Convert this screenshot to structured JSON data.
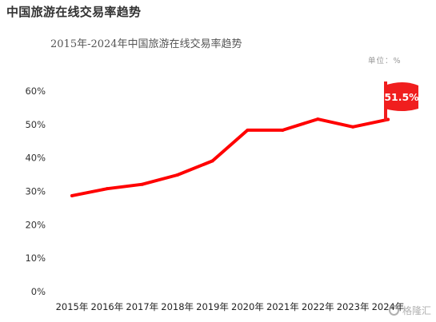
{
  "page": {
    "title": "中国旅游在线交易率趋势",
    "subtitle": "2015年-2024年中国旅游在线交易率趋势",
    "unit": "单位：%",
    "watermark": "格隆汇"
  },
  "colors": {
    "line": "#ff0000",
    "callout": "#f01e1e"
  },
  "chart_data": {
    "type": "line",
    "title": "中国旅游在线交易率趋势",
    "subtitle": "2015年-2024年中国旅游在线交易率趋势",
    "xlabel": "",
    "ylabel": "",
    "unit": "单位：%",
    "categories": [
      "2015年",
      "2016年",
      "2017年",
      "2018年",
      "2019年",
      "2020年",
      "2021年",
      "2022年",
      "2023年",
      "2024年"
    ],
    "series": [
      {
        "values": [
          28.7,
          30.8,
          32.1,
          34.9,
          39.1,
          48.3,
          48.3,
          51.6,
          49.3,
          51.5
        ]
      }
    ],
    "ylim": [
      0,
      60
    ],
    "yticks": [
      0,
      10,
      20,
      30,
      40,
      50,
      60
    ],
    "ytick_labels": [
      "0%",
      "10%",
      "20%",
      "30%",
      "40%",
      "50%",
      "60%"
    ],
    "callout": "51.5%",
    "grid": false,
    "legend": "none"
  }
}
